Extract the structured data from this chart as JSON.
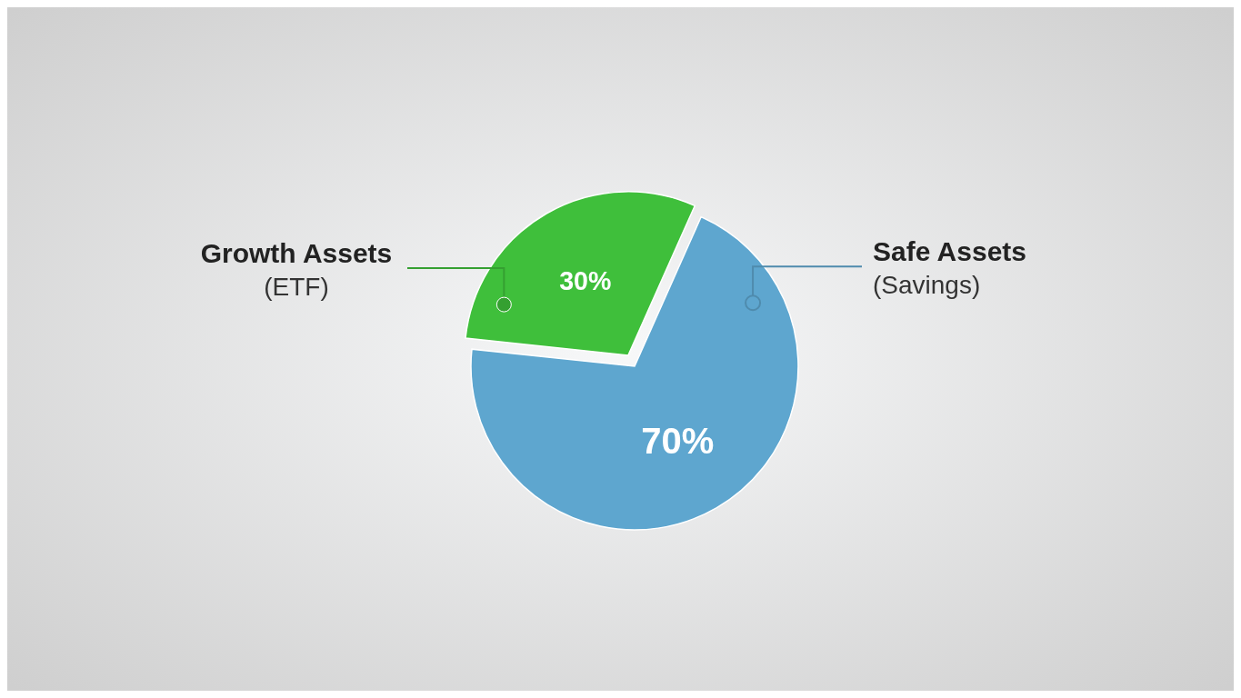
{
  "chart_data": {
    "type": "pie",
    "categories": [
      "Safe Assets (Savings)",
      "Growth Assets (ETF)"
    ],
    "values": [
      70,
      30
    ],
    "colors": [
      "#5ea6cf",
      "#3fbf3b"
    ],
    "value_labels": [
      "70%",
      "30%"
    ]
  }
}
